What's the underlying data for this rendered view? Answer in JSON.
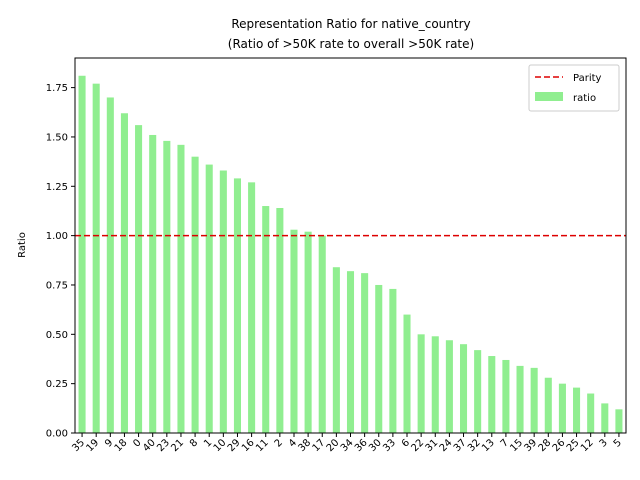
{
  "chart_data": {
    "type": "bar",
    "title": "Representation Ratio for native_country",
    "subtitle": "(Ratio of >50K rate to overall >50K rate)",
    "xlabel": "",
    "ylabel": "Ratio",
    "ylim": [
      0,
      1.9
    ],
    "yticks": [
      "0.00",
      "0.25",
      "0.50",
      "0.75",
      "1.00",
      "1.25",
      "1.50",
      "1.75"
    ],
    "categories": [
      "35",
      "19",
      "9",
      "18",
      "0",
      "40",
      "23",
      "21",
      "8",
      "1",
      "10",
      "29",
      "16",
      "11",
      "2",
      "4",
      "38",
      "17",
      "20",
      "34",
      "36",
      "30",
      "33",
      "6",
      "22",
      "31",
      "24",
      "37",
      "32",
      "13",
      "7",
      "15",
      "39",
      "28",
      "26",
      "25",
      "12",
      "3",
      "5"
    ],
    "series": [
      {
        "name": "ratio",
        "color": "#90ee90",
        "values": [
          1.81,
          1.77,
          1.7,
          1.62,
          1.56,
          1.51,
          1.48,
          1.46,
          1.4,
          1.36,
          1.33,
          1.29,
          1.27,
          1.15,
          1.14,
          1.03,
          1.02,
          1.0,
          0.84,
          0.82,
          0.81,
          0.75,
          0.73,
          0.6,
          0.5,
          0.49,
          0.47,
          0.45,
          0.42,
          0.39,
          0.37,
          0.34,
          0.33,
          0.28,
          0.25,
          0.23,
          0.2,
          0.15,
          0.12
        ]
      }
    ],
    "reference_line": {
      "name": "Parity",
      "value": 1.0,
      "color": "#dd0000",
      "style": "dashed"
    },
    "legend": {
      "placement": "top-right",
      "entries": [
        "Parity",
        "ratio"
      ]
    },
    "grid": false
  }
}
